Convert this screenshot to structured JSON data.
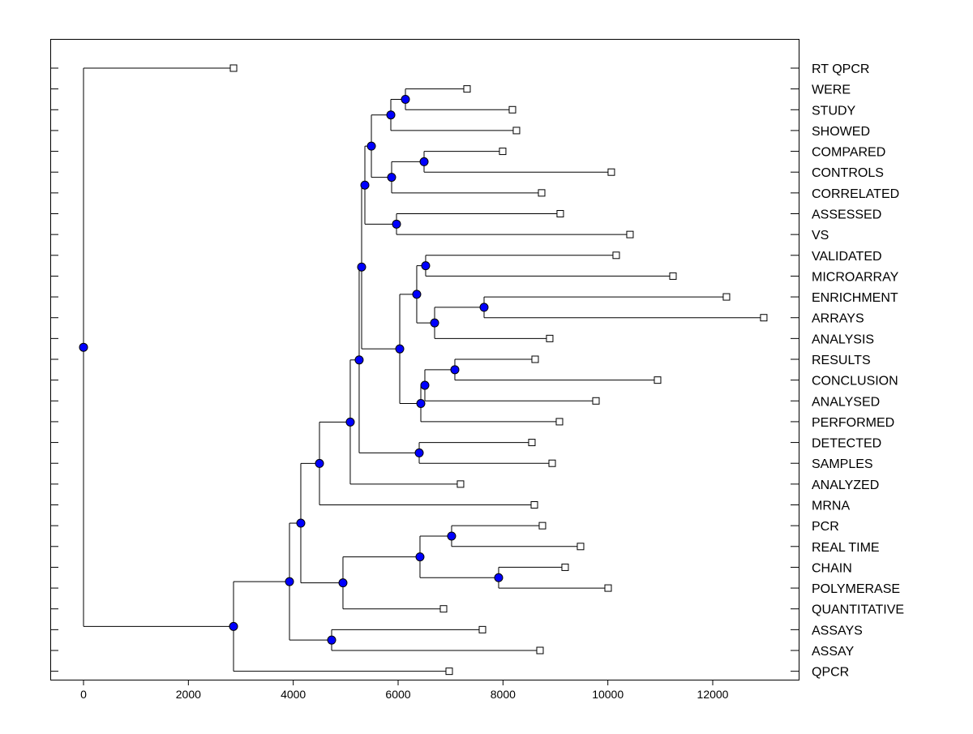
{
  "chart_data": {
    "type": "dendrogram",
    "title": "",
    "xlabel": "",
    "ylabel": "",
    "xlim": [
      -640,
      13800
    ],
    "xticks": [
      0,
      2000,
      4000,
      6000,
      8000,
      10000,
      12000
    ],
    "xtick_labels": [
      "0",
      "2000",
      "4000",
      "6000",
      "8000",
      "10000",
      "12000"
    ],
    "grid": false,
    "node_color": "#0000ff",
    "leaves": [
      {
        "label": "RT QPCR",
        "height": 2861
      },
      {
        "label": "WERE",
        "height": 7314
      },
      {
        "label": "STUDY",
        "height": 8180
      },
      {
        "label": "SHOWED",
        "height": 8257
      },
      {
        "label": "COMPARED",
        "height": 7994
      },
      {
        "label": "CONTROLS",
        "height": 10066
      },
      {
        "label": "CORRELATED",
        "height": 8737
      },
      {
        "label": "ASSESSED",
        "height": 9092
      },
      {
        "label": "VS",
        "height": 10422
      },
      {
        "label": "VALIDATED",
        "height": 10159
      },
      {
        "label": "MICROARRAY",
        "height": 11242
      },
      {
        "label": "ENRICHMENT",
        "height": 12262
      },
      {
        "label": "ARRAYS",
        "height": 12973
      },
      {
        "label": "ANALYSIS",
        "height": 8891
      },
      {
        "label": "RESULTS",
        "height": 8613
      },
      {
        "label": "CONCLUSION",
        "height": 10948
      },
      {
        "label": "ANALYSED",
        "height": 9773
      },
      {
        "label": "PERFORMED",
        "height": 9077
      },
      {
        "label": "DETECTED",
        "height": 8551
      },
      {
        "label": "SAMPLES",
        "height": 8938
      },
      {
        "label": "ANALYZED",
        "height": 7190
      },
      {
        "label": "MRNA",
        "height": 8598
      },
      {
        "label": "PCR",
        "height": 8752
      },
      {
        "label": "REAL TIME",
        "height": 9479
      },
      {
        "label": "CHAIN",
        "height": 9185
      },
      {
        "label": "POLYMERASE",
        "height": 10005
      },
      {
        "label": "QUANTITATIVE",
        "height": 6866
      },
      {
        "label": "ASSAYS",
        "height": 7608
      },
      {
        "label": "ASSAY",
        "height": 8706
      },
      {
        "label": "QPCR",
        "height": 6974
      }
    ],
    "tree": {
      "h": 0,
      "c": [
        "RT QPCR",
        {
          "h": 2861,
          "c": [
            {
              "h": 3928,
              "c": [
                {
                  "h": 4144,
                  "c": [
                    {
                      "h": 4500,
                      "c": [
                        {
                          "h": 5087,
                          "c": [
                            {
                              "h": 5257,
                              "c": [
                                {
                                  "h": 5304,
                                  "c": [
                                    {
                                      "h": 5366,
                                      "c": [
                                        {
                                          "h": 5490,
                                          "c": [
                                            {
                                              "h": 5861,
                                              "c": [
                                                {
                                                  "h": 6139,
                                                  "c": [
                                                    "WERE",
                                                    "STUDY"
                                                  ]
                                                },
                                                "SHOWED"
                                              ]
                                            },
                                            {
                                              "h": 5876,
                                              "c": [
                                                {
                                                  "h": 6495,
                                                  "c": [
                                                    "COMPARED",
                                                    "CONTROLS"
                                                  ]
                                                },
                                                "CORRELATED"
                                              ]
                                            }
                                          ]
                                        },
                                        {
                                          "h": 5969,
                                          "c": [
                                            "ASSESSED",
                                            "VS"
                                          ]
                                        }
                                      ]
                                    },
                                    {
                                      "h": 6031,
                                      "c": [
                                        {
                                          "h": 6355,
                                          "c": [
                                            {
                                              "h": 6525,
                                              "c": [
                                                "VALIDATED",
                                                "MICROARRAY"
                                              ]
                                            },
                                            {
                                              "h": 6696,
                                              "c": [
                                                {
                                                  "h": 7639,
                                                  "c": [
                                                    "ENRICHMENT",
                                                    "ARRAYS"
                                                  ]
                                                },
                                                "ANALYSIS"
                                              ]
                                            }
                                          ]
                                        },
                                        {
                                          "h": 6433,
                                          "c": [
                                            {
                                              "h": 6510,
                                              "c": [
                                                {
                                                  "h": 7082,
                                                  "c": [
                                                    "RESULTS",
                                                    "CONCLUSION"
                                                  ]
                                                },
                                                "ANALYSED"
                                              ]
                                            },
                                            "PERFORMED"
                                          ]
                                        }
                                      ]
                                    }
                                  ]
                                },
                                {
                                  "h": 6402,
                                  "c": [
                                    "DETECTED",
                                    "SAMPLES"
                                  ]
                                }
                              ]
                            },
                            "ANALYZED"
                          ]
                        },
                        "MRNA"
                      ]
                    },
                    {
                      "h": 4948,
                      "c": [
                        {
                          "h": 6417,
                          "c": [
                            {
                              "h": 7020,
                              "c": [
                                "PCR",
                                "REAL TIME"
                              ]
                            },
                            {
                              "h": 7917,
                              "c": [
                                "CHAIN",
                                "POLYMERASE"
                              ]
                            }
                          ]
                        },
                        "QUANTITATIVE"
                      ]
                    }
                  ]
                },
                {
                  "h": 4732,
                  "c": [
                    "ASSAYS",
                    "ASSAY"
                  ]
                }
              ]
            },
            "QPCR"
          ]
        }
      ]
    }
  }
}
